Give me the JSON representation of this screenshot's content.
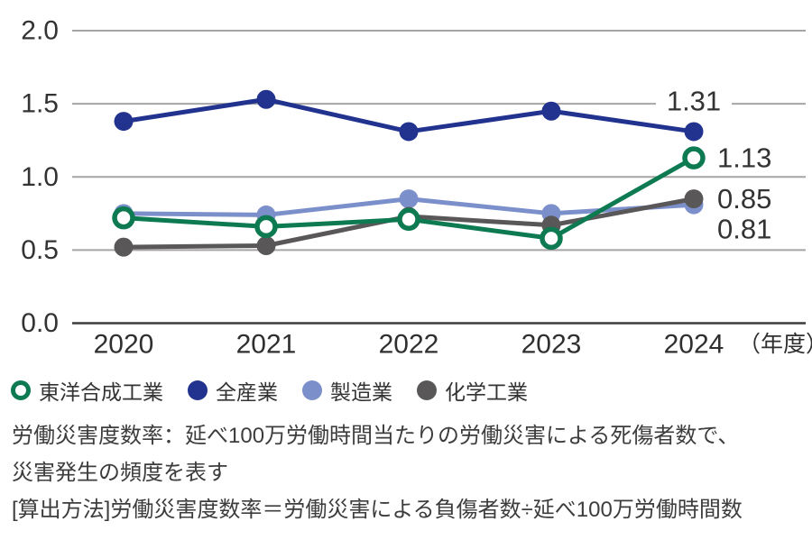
{
  "chart_data": {
    "type": "line",
    "x": [
      "2020",
      "2021",
      "2022",
      "2023",
      "2024"
    ],
    "x_axis_suffix": "（年度）",
    "ylim": [
      0,
      2.0
    ],
    "yticks": [
      "0.0",
      "0.5",
      "1.0",
      "1.5",
      "2.0"
    ],
    "grid": "horizontal",
    "legend_position": "bottom-left",
    "series": [
      {
        "name": "東洋合成工業",
        "color": "#0d7a52",
        "marker": "open-circle",
        "values": [
          0.72,
          0.66,
          0.71,
          0.58,
          1.13
        ],
        "end_label": "1.13",
        "end_label_pos": "right",
        "z": 4
      },
      {
        "name": "全産業",
        "color": "#22338f",
        "marker": "filled-circle",
        "values": [
          1.38,
          1.53,
          1.31,
          1.45,
          1.31
        ],
        "end_label": "1.31",
        "end_label_pos": "above",
        "z": 3
      },
      {
        "name": "製造業",
        "color": "#7b8fca",
        "marker": "filled-circle",
        "values": [
          0.75,
          0.74,
          0.85,
          0.75,
          0.81
        ],
        "end_label": "0.81",
        "end_label_pos": "right-below",
        "z": 1
      },
      {
        "name": "化学工業",
        "color": "#595757",
        "marker": "filled-circle",
        "values": [
          0.52,
          0.53,
          0.73,
          0.67,
          0.85
        ],
        "end_label": "0.85",
        "end_label_pos": "right",
        "z": 2
      }
    ],
    "colors": {
      "gridline": "#a5a5a5",
      "axis_line": "#3c3c3c",
      "tick_label": "#333333",
      "value_label": "#333333"
    }
  },
  "footer": {
    "lines": [
      "労働災害度数率：延べ100万労働時間当たりの労働災害による死傷者数で、",
      "災害発生の頻度を表す",
      "[算出方法]労働災害度数率＝労働災害による負傷者数÷延べ100万労働時間数"
    ]
  }
}
